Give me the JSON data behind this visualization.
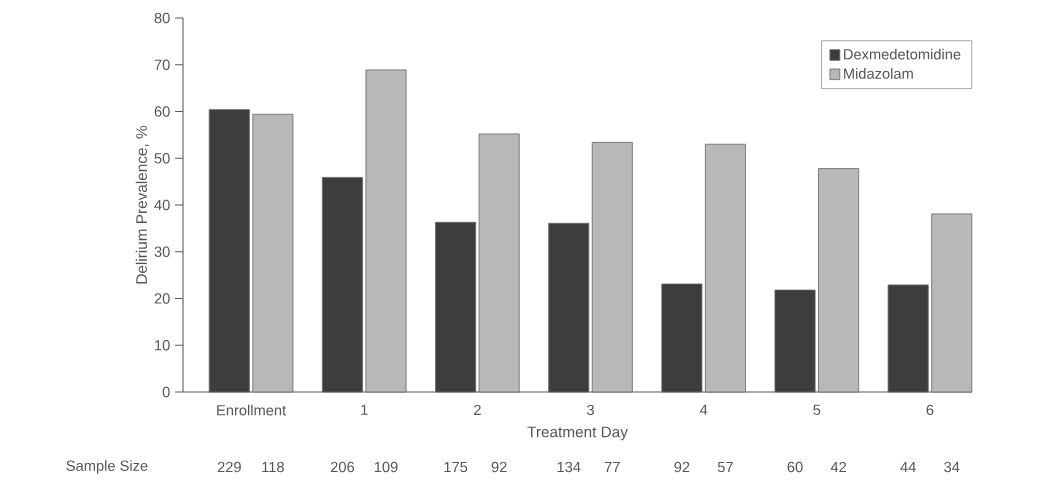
{
  "chart_data": {
    "type": "bar",
    "xlabel": "Treatment Day",
    "ylabel": "Delirium Prevalence, %",
    "categories": [
      "Enrollment",
      "1",
      "2",
      "3",
      "4",
      "5",
      "6"
    ],
    "series": [
      {
        "name": "Dexmedetomidine",
        "color": "#3d3d3d",
        "values": [
          60.4,
          45.9,
          36.3,
          36.1,
          23.1,
          21.8,
          22.9
        ]
      },
      {
        "name": "Midazolam",
        "color": "#b8b8b8",
        "values": [
          59.4,
          68.9,
          55.2,
          53.4,
          53.0,
          47.8,
          38.1
        ]
      }
    ],
    "ylim": [
      0,
      80
    ],
    "yticks": [
      0,
      10,
      20,
      30,
      40,
      50,
      60,
      70,
      80
    ],
    "legend": "top right",
    "annotations": [
      "Sample Size",
      "229",
      "118",
      "206",
      "109",
      "175",
      "92",
      "134",
      "77",
      "92",
      "57",
      "60",
      "42",
      "44",
      "34"
    ]
  }
}
